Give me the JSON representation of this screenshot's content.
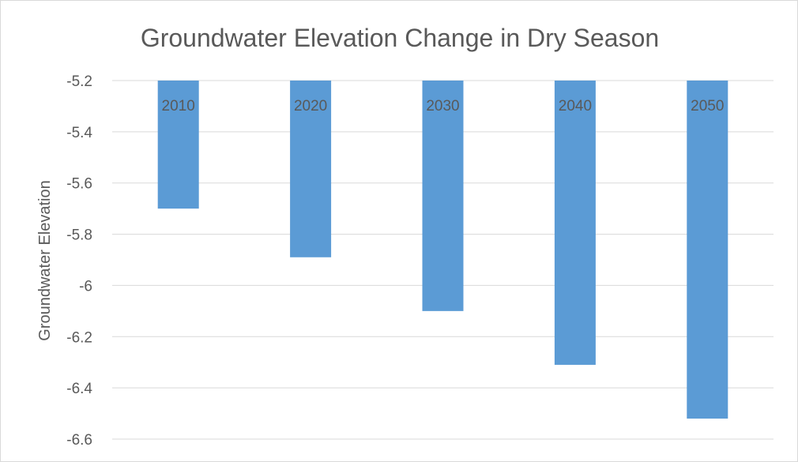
{
  "chart_data": {
    "type": "bar",
    "title": "Groundwater Elevation Change in Dry Season",
    "xlabel": "",
    "ylabel": "Groundwater Elevation",
    "categories": [
      "2010",
      "2020",
      "2030",
      "2040",
      "2050"
    ],
    "values": [
      -5.7,
      -5.89,
      -6.1,
      -6.31,
      -6.52
    ],
    "ylim": [
      -6.6,
      -5.2
    ],
    "yticks": [
      -5.2,
      -5.4,
      -5.6,
      -5.8,
      -6,
      -6.2,
      -6.4,
      -6.6
    ],
    "ytick_labels": [
      "-5.2",
      "-5.4",
      "-5.6",
      "-5.8",
      "-6",
      "-6.2",
      "-6.4",
      "-6.6"
    ],
    "grid": true,
    "legend": "none",
    "bar_color": "#5b9bd5",
    "grid_color": "#d9d9d9",
    "text_color": "#595959"
  }
}
